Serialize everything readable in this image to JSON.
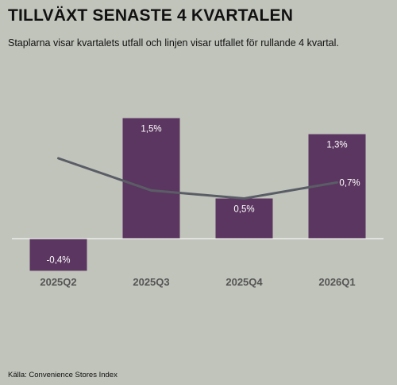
{
  "title": "TILLVÄXT SENASTE 4 KVARTALEN",
  "subtitle": "Staplarna visar kvartalets utfall och linjen visar utfallet för rullande 4 kvartal.",
  "source": "Källa: Convenience Stores Index",
  "colors": {
    "bar": "#5b3660",
    "line": "#5a5d66",
    "background": "#c1c4bb",
    "axis": "#ffffff"
  },
  "chart_data": {
    "type": "bar",
    "categories": [
      "2025Q2",
      "2025Q3",
      "2025Q4",
      "2026Q1"
    ],
    "series": [
      {
        "kind": "bar",
        "values": [
          -0.4,
          1.5,
          0.5,
          1.3
        ],
        "labels": [
          "-0,4%",
          "1,5%",
          "0,5%",
          "1,3%"
        ]
      },
      {
        "kind": "line",
        "values": [
          1.0,
          0.6,
          0.5,
          0.7
        ],
        "labels": [
          "",
          "",
          "",
          "0,7%"
        ]
      }
    ],
    "title": "TILLVÄXT SENASTE 4 KVARTALEN",
    "xlabel": "",
    "ylabel": "",
    "ylim": [
      -0.5,
      1.7
    ],
    "grid": false,
    "legend": "none"
  }
}
